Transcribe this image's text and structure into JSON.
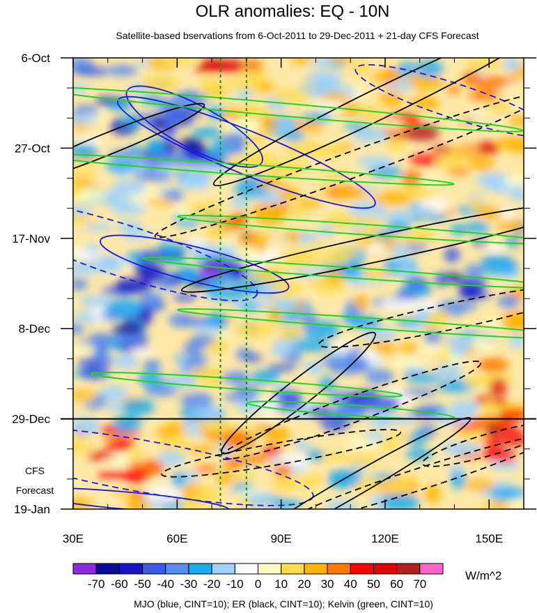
{
  "chart_data": {
    "type": "heatmap",
    "title": "OLR anomalies: EQ - 10N",
    "subtitle": "Satellite-based bservations from 6-Oct-2011 to 29-Dec-2011 + 21-day CFS Forecast",
    "xlabel": "",
    "ylabel": "",
    "x_range": [
      30,
      160
    ],
    "x_ticks": [
      {
        "value": 30,
        "label": "30E"
      },
      {
        "value": 60,
        "label": "60E"
      },
      {
        "value": 90,
        "label": "90E"
      },
      {
        "value": 120,
        "label": "120E"
      },
      {
        "value": 150,
        "label": "150E"
      }
    ],
    "y_range_days": [
      0,
      105
    ],
    "y_ticks": [
      {
        "day": 0,
        "label": "6-Oct"
      },
      {
        "day": 21,
        "label": "27-Oct"
      },
      {
        "day": 42,
        "label": "17-Nov"
      },
      {
        "day": 63,
        "label": "8-Dec"
      },
      {
        "day": 84,
        "label": "29-Dec"
      },
      {
        "day": 105,
        "label": "19-Jan"
      }
    ],
    "forecast_label_lines": [
      "CFS",
      "Forecast"
    ],
    "forecast_start_day": 84,
    "reference_longitudes": [
      72.5,
      80
    ],
    "colorbar": {
      "units": "W/m^2",
      "levels": [
        "-70",
        "-60",
        "-50",
        "-40",
        "-30",
        "-20",
        "-10",
        "0",
        "10",
        "20",
        "30",
        "40",
        "50",
        "60",
        "70"
      ],
      "colors": [
        "#8a2be2",
        "#0b0b9a",
        "#1414c8",
        "#3c5ae6",
        "#5a8cf0",
        "#1eaaf0",
        "#a0d2ff",
        "#ffffff",
        "#ffffc8",
        "#ffdc50",
        "#ffb400",
        "#ff7800",
        "#ff0000",
        "#dc0000",
        "#b41e1e",
        "#ff64c8"
      ]
    },
    "footer": "MJO (blue, CINT=10); ER (black, CINT=10); Kelvin (green, CINT=10)",
    "series": [
      {
        "name": "MJO",
        "color": "#1a1adc"
      },
      {
        "name": "ER",
        "color": "#000000"
      },
      {
        "name": "Kelvin",
        "color": "#22d422"
      }
    ]
  }
}
